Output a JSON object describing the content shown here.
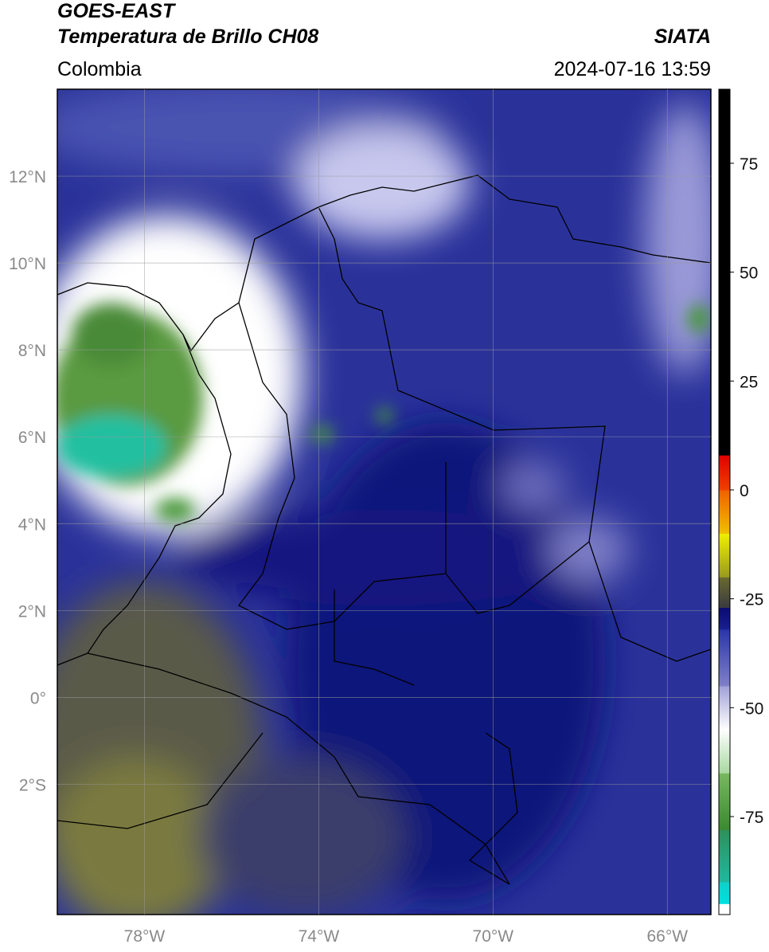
{
  "header": {
    "title": "GOES-EAST",
    "subtitle": "Temperatura de Brillo CH08",
    "agency": "SIATA",
    "region": "Colombia",
    "datetime": "2024-07-16 13:59"
  },
  "map": {
    "xlim": [
      -80,
      -65
    ],
    "ylim": [
      -5,
      14
    ],
    "grid": true,
    "xticks": [
      {
        "value": -78,
        "label": "78°W"
      },
      {
        "value": -74,
        "label": "74°W"
      },
      {
        "value": -70,
        "label": "70°W"
      },
      {
        "value": -66,
        "label": "66°W"
      }
    ],
    "yticks": [
      {
        "value": 12,
        "label": "12°N"
      },
      {
        "value": 10,
        "label": "10°N"
      },
      {
        "value": 8,
        "label": "8°N"
      },
      {
        "value": 6,
        "label": "6°N"
      },
      {
        "value": 4,
        "label": "4°N"
      },
      {
        "value": 2,
        "label": "2°N"
      },
      {
        "value": 0,
        "label": "0°"
      },
      {
        "value": -2,
        "label": "2°S"
      }
    ]
  },
  "colorbar": {
    "lim": [
      -97.5,
      92
    ],
    "yticks": [
      75,
      50,
      25,
      0,
      -25,
      -50,
      -75
    ],
    "segments": [
      {
        "from": -97.5,
        "to": -95,
        "colors": [
          "#ffffff",
          "#ffffff"
        ]
      },
      {
        "from": -95,
        "to": -90,
        "colors": [
          "#00e0e0",
          "#10d0c8"
        ]
      },
      {
        "from": -90,
        "to": -78,
        "colors": [
          "#20b8a0",
          "#2f8f5a"
        ]
      },
      {
        "from": -78,
        "to": -65,
        "colors": [
          "#3a8a30",
          "#78b860"
        ]
      },
      {
        "from": -65,
        "to": -55,
        "colors": [
          "#a8d8a0",
          "#ffffff"
        ]
      },
      {
        "from": -55,
        "to": -45,
        "colors": [
          "#ffffff",
          "#a0a0d8"
        ]
      },
      {
        "from": -45,
        "to": -32,
        "colors": [
          "#8080c8",
          "#2a36a8"
        ]
      },
      {
        "from": -32,
        "to": -27,
        "colors": [
          "#1a2090",
          "#0a0a70"
        ]
      },
      {
        "from": -27,
        "to": -20,
        "colors": [
          "#3a3a40",
          "#6a6a30"
        ]
      },
      {
        "from": -20,
        "to": -10,
        "colors": [
          "#9a9a20",
          "#f0f000"
        ]
      },
      {
        "from": -10,
        "to": 0,
        "colors": [
          "#f0c000",
          "#f06000"
        ]
      },
      {
        "from": 0,
        "to": 8,
        "colors": [
          "#f04000",
          "#e00000"
        ]
      },
      {
        "from": 8,
        "to": 92,
        "colors": [
          "#000000",
          "#000000"
        ]
      }
    ]
  }
}
